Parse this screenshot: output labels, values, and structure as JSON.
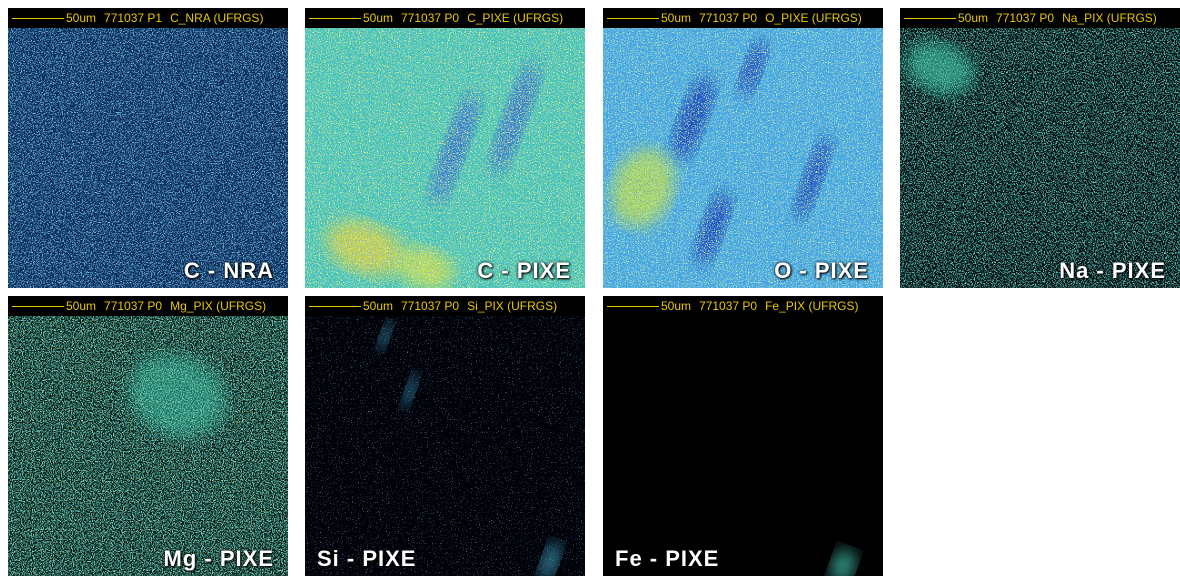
{
  "panels": [
    {
      "scale": "50um",
      "run": "771037 P1",
      "map": "C_NRA (UFRGS)",
      "label": "C - NRA"
    },
    {
      "scale": "50um",
      "run": "771037 P0",
      "map": "C_PIXE (UFRGS)",
      "label": "C - PIXE"
    },
    {
      "scale": "50um",
      "run": "771037 P0",
      "map": "O_PIXE (UFRGS)",
      "label": "O - PIXE"
    },
    {
      "scale": "50um",
      "run": "771037 P0",
      "map": "Na_PIX (UFRGS)",
      "label": "Na - PIXE"
    },
    {
      "scale": "50um",
      "run": "771037 P0",
      "map": "Mg_PIX (UFRGS)",
      "label": "Mg - PIXE"
    },
    {
      "scale": "50um",
      "run": "771037 P0",
      "map": "Si_PIX (UFRGS)",
      "label": "Si - PIXE"
    },
    {
      "scale": "50um",
      "run": "771037 P0",
      "map": "Fe_PIX (UFRGS)",
      "label": "Fe - PIXE"
    }
  ]
}
